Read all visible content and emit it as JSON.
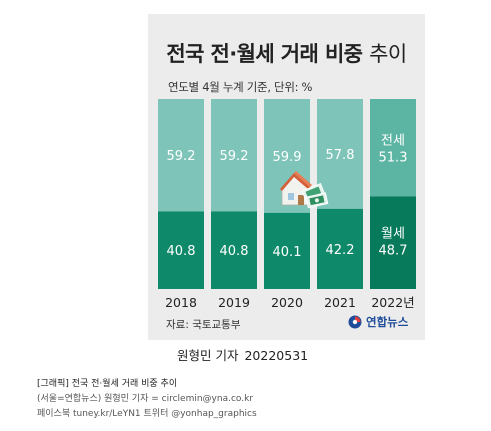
{
  "card": {
    "title_bold": "전국 전·월세 거래 비중",
    "title_light": "추이",
    "subtitle": "연도별 4월 누계 기준, 단위: %",
    "source": "자료: 국토교통부",
    "logo_text": "연합뉴스"
  },
  "credit": {
    "name": "원형민 기자",
    "date": "20220531"
  },
  "caption": {
    "title": "[그래픽] 전국 전·월세 거래 비중 추이",
    "line1": "(서울=연합뉴스) 원형민 기자 = circlemin@yna.co.kr",
    "line2": "페이스북 tuney.kr/LeYN1 트위터 @yonhap_graphics"
  },
  "colors": {
    "jeonse": "#7ec4b8",
    "wolse": "#0e8a6a",
    "jeonse_highlight": "#5cb5a3",
    "wolse_highlight": "#077a5c",
    "background": "#ececec"
  },
  "chart_data": {
    "type": "bar",
    "stacked": true,
    "categories": [
      "2018",
      "2019",
      "2020",
      "2021",
      "2022년"
    ],
    "series": [
      {
        "name": "월세",
        "values": [
          40.8,
          40.8,
          40.1,
          42.2,
          48.7
        ],
        "position": "bottom"
      },
      {
        "name": "전세",
        "values": [
          59.2,
          59.2,
          59.9,
          57.8,
          51.3
        ],
        "position": "top"
      }
    ],
    "title": "전국 전·월세 거래 비중 추이",
    "unit": "%",
    "ylim": [
      0,
      100
    ],
    "grid": false,
    "legend": "inline labels on last bar",
    "highlight_category": "2022년",
    "decoration": "house-and-banknotes-icon"
  }
}
